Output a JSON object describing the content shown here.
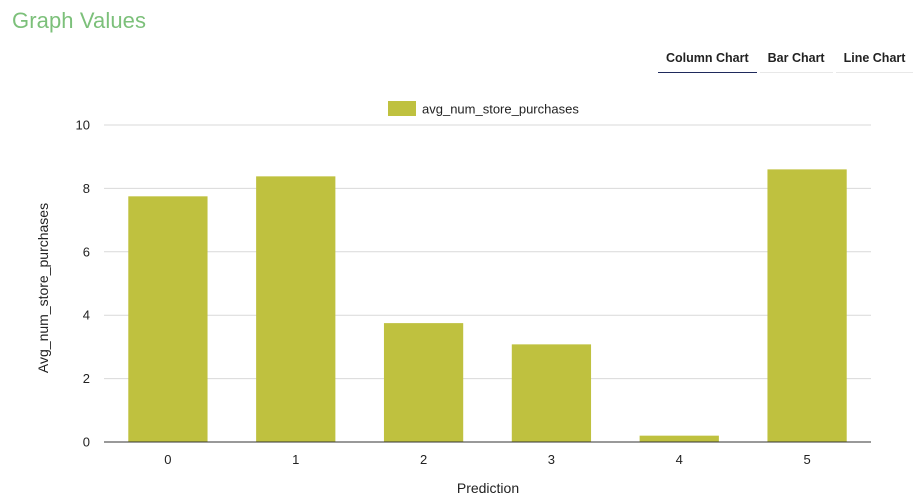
{
  "page": {
    "title": "Graph Values",
    "title_color": "#7cc07a"
  },
  "tabs": [
    {
      "label": "Column Chart",
      "active": true
    },
    {
      "label": "Bar Chart",
      "active": false
    },
    {
      "label": "Line Chart",
      "active": false
    }
  ],
  "chart_data": {
    "type": "bar",
    "categories": [
      "0",
      "1",
      "2",
      "3",
      "4",
      "5"
    ],
    "series": [
      {
        "name": "avg_num_store_purchases",
        "color": "#bfc13f",
        "values": [
          7.75,
          8.38,
          3.75,
          3.08,
          0.2,
          8.6
        ]
      }
    ],
    "xlabel": "Prediction",
    "ylabel": "Avg_num_store_purchases",
    "ylim": [
      0,
      10
    ],
    "yticks": [
      "0",
      "2",
      "4",
      "6",
      "8",
      "10"
    ],
    "grid": true,
    "legend_position": "top"
  }
}
